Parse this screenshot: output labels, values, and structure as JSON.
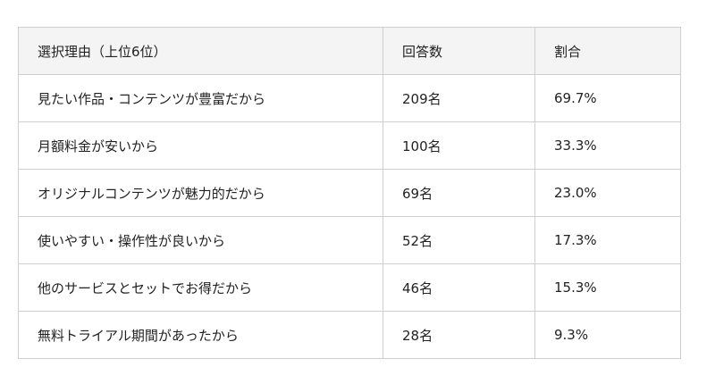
{
  "table": {
    "headers": [
      "選択理由（上位6位）",
      "回答数",
      "割合"
    ],
    "rows": [
      [
        "見たい作品・コンテンツが豊富だから",
        "209名",
        "69.7%"
      ],
      [
        "月額料金が安いから",
        "100名",
        "33.3%"
      ],
      [
        "オリジナルコンテンツが魅力的だから",
        "69名",
        "23.0%"
      ],
      [
        "使いやすい・操作性が良いから",
        "52名",
        "17.3%"
      ],
      [
        "他のサービスとセットでお得だから",
        "46名",
        "15.3%"
      ],
      [
        "無料トライアル期間があったから",
        "28名",
        "9.3%"
      ]
    ]
  }
}
